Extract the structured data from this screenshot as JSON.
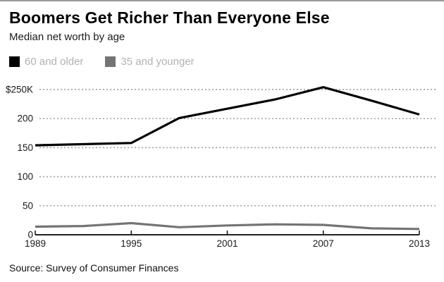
{
  "header": {
    "title": "Boomers Get Richer Than Everyone Else",
    "subtitle": "Median net worth by age"
  },
  "source": "Source: Survey of Consumer Finances",
  "colors": {
    "series_older": "#000000",
    "series_younger": "#747474",
    "legend_text": "#b2b2b2",
    "gridline": "#a6a6a6",
    "axis": "#000000",
    "top_border": "#999999"
  },
  "chart_data": {
    "type": "line",
    "title": "Boomers Get Richer Than Everyone Else",
    "subtitle": "Median net worth by age",
    "x": [
      1989,
      1992,
      1995,
      1998,
      2001,
      2004,
      2007,
      2010,
      2013
    ],
    "series": [
      {
        "name": "60 and older",
        "color": "#000000",
        "values": [
          154,
          156,
          158,
          201,
          217,
          233,
          254,
          231,
          207
        ]
      },
      {
        "name": "35 and younger",
        "color": "#747474",
        "values": [
          14,
          15,
          20,
          13,
          16,
          18,
          17,
          11,
          10
        ]
      }
    ],
    "units": "thousands of dollars",
    "xlim": [
      1989,
      2013
    ],
    "ylim": [
      0,
      250
    ],
    "yticks": [
      {
        "value": 250,
        "label": "$250K"
      },
      {
        "value": 200,
        "label": "200"
      },
      {
        "value": 150,
        "label": "150"
      },
      {
        "value": 100,
        "label": "100"
      },
      {
        "value": 50,
        "label": "50"
      },
      {
        "value": 0,
        "label": "0"
      }
    ],
    "xticks": [
      {
        "value": 1989,
        "label": "1989"
      },
      {
        "value": 1995,
        "label": "1995"
      },
      {
        "value": 2001,
        "label": "2001"
      },
      {
        "value": 2007,
        "label": "2007"
      },
      {
        "value": 2013,
        "label": "2013"
      }
    ],
    "grid": "horizontal-dotted",
    "legend_position": "top-left",
    "source": "Source: Survey of Consumer Finances"
  }
}
